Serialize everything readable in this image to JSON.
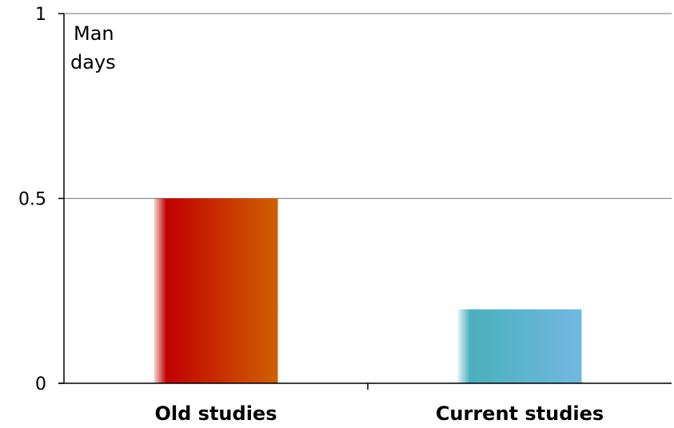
{
  "chart_data": {
    "type": "bar",
    "categories": [
      "Old studies",
      "Current studies"
    ],
    "values": [
      0.5,
      0.2
    ],
    "ylabel": "Man days",
    "ylabel_lines": [
      "Man",
      "days"
    ],
    "ylim": [
      0,
      1
    ],
    "yticks": [
      {
        "value": 0,
        "label": "0"
      },
      {
        "value": 0.5,
        "label": "0.5"
      },
      {
        "value": 1,
        "label": "1"
      }
    ],
    "grid": true,
    "bar_colors": [
      {
        "start": "#c00000",
        "end": "#d06000"
      },
      {
        "start": "#4aafbd",
        "end": "#72b8e0"
      }
    ]
  }
}
